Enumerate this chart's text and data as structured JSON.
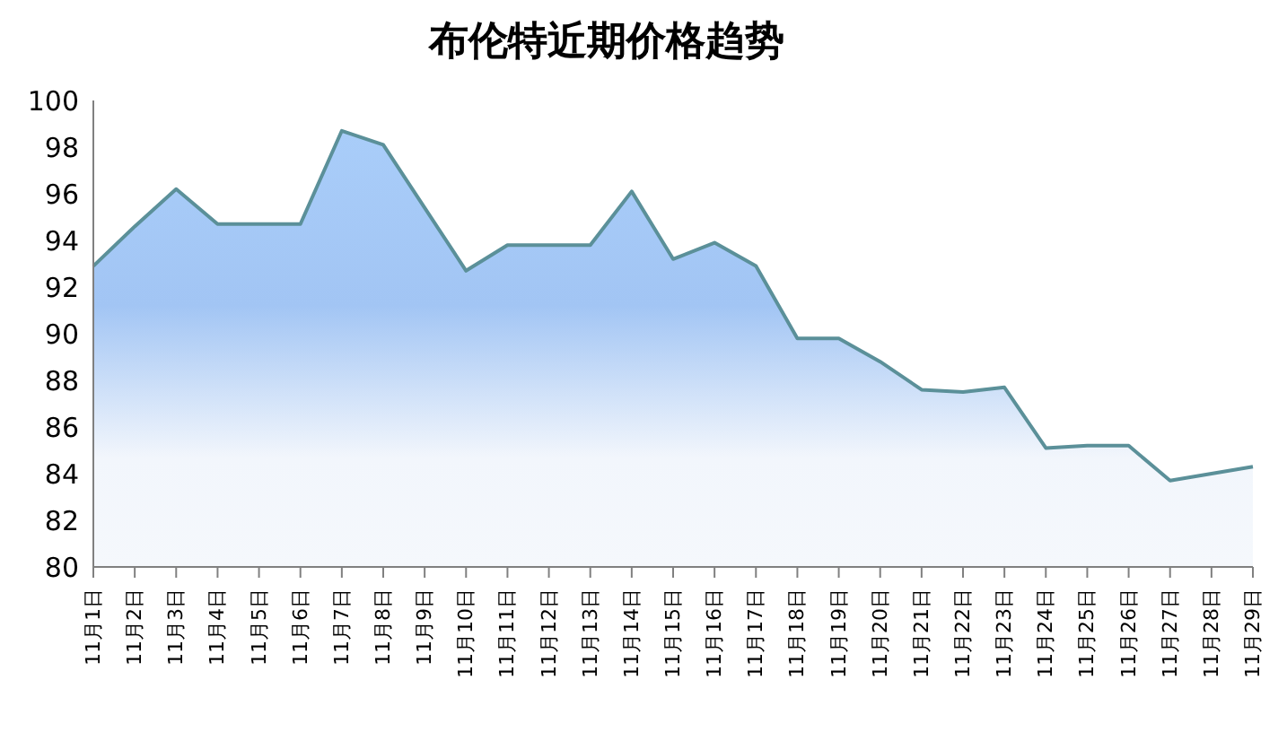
{
  "chart_data": {
    "type": "area",
    "title": "布伦特近期价格趋势",
    "categories": [
      "11月1日",
      "11月2日",
      "11月3日",
      "11月4日",
      "11月5日",
      "11月6日",
      "11月7日",
      "11月8日",
      "11月9日",
      "11月10日",
      "11月11日",
      "11月12日",
      "11月13日",
      "11月14日",
      "11月15日",
      "11月16日",
      "11月17日",
      "11月18日",
      "11月19日",
      "11月20日",
      "11月21日",
      "11月22日",
      "11月23日",
      "11月24日",
      "11月25日",
      "11月26日",
      "11月27日",
      "11月28日",
      "11月29日"
    ],
    "series": [
      {
        "color": "#5b9099",
        "values": [
          92.9,
          94.6,
          96.2,
          94.7,
          94.7,
          94.7,
          98.7,
          98.1,
          95.4,
          92.7,
          93.8,
          93.8,
          93.8,
          96.1,
          93.2,
          93.9,
          92.9,
          89.8,
          89.8,
          88.8,
          87.6,
          87.5,
          87.7,
          85.1,
          85.2,
          85.2,
          83.7,
          84.0,
          84.3
        ]
      }
    ],
    "ylim": [
      80,
      100
    ],
    "yticks": [
      80,
      82,
      84,
      86,
      88,
      90,
      92,
      94,
      96,
      98,
      100
    ],
    "grid": false,
    "legend": false,
    "marker": "none"
  }
}
